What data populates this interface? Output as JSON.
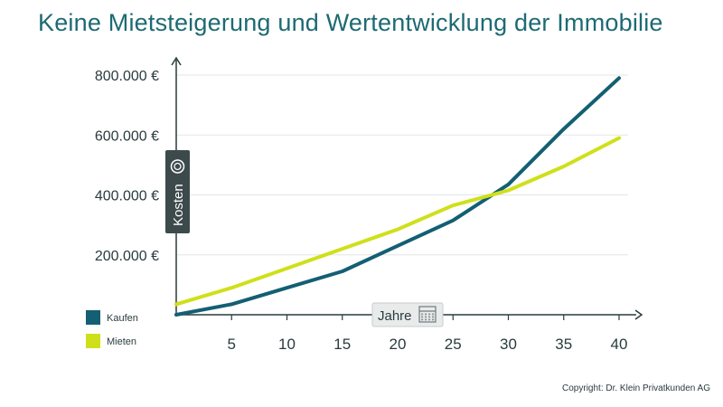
{
  "title": "Keine Mietsteigerung und Wertentwicklung der Immobilie",
  "copyright": "Copyright: Dr. Klein Privatkunden AG",
  "colors": {
    "title": "#1d6a73",
    "kaufen": "#135f73",
    "mieten": "#cfe01a",
    "axis": "#2a3b3d",
    "grid": "#e3e6e6",
    "label_box": "#3c4a4c",
    "jahre_box": "#e9ebeb"
  },
  "chart_data": {
    "type": "line",
    "ylabel": "Kosten",
    "ylabel_icon": "coin-icon",
    "xlabel": "Jahre",
    "xlabel_icon": "calendar-icon",
    "x_ticks": [
      5,
      10,
      15,
      20,
      25,
      30,
      35,
      40
    ],
    "y_ticks": [
      {
        "value": 200000,
        "label": "200.000 €"
      },
      {
        "value": 400000,
        "label": "400.000 €"
      },
      {
        "value": 600000,
        "label": "600.000 €"
      },
      {
        "value": 800000,
        "label": "800.000 €"
      }
    ],
    "xlim": [
      0,
      40
    ],
    "ylim": [
      0,
      800000
    ],
    "grid": true,
    "legend_position": "bottom-left",
    "series": [
      {
        "name": "Kaufen",
        "color": "#135f73",
        "x": [
          0,
          5,
          10,
          15,
          20,
          25,
          30,
          35,
          40
        ],
        "y": [
          0,
          35000,
          90000,
          145000,
          230000,
          315000,
          435000,
          620000,
          790000
        ]
      },
      {
        "name": "Mieten",
        "color": "#cfe01a",
        "x": [
          0,
          5,
          10,
          15,
          20,
          25,
          30,
          35,
          40
        ],
        "y": [
          35000,
          90000,
          155000,
          220000,
          285000,
          365000,
          415000,
          495000,
          590000
        ]
      }
    ]
  }
}
